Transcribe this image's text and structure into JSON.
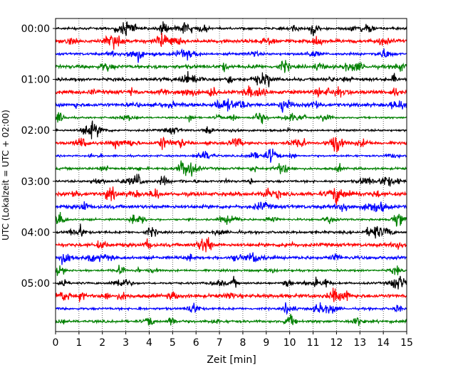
{
  "chart_data": {
    "type": "line",
    "title": "",
    "xlabel": "Zeit  [min]",
    "ylabel": "UTC (Lokalzeit = UTC + 02:00)",
    "xlim": [
      0,
      15
    ],
    "x_ticks": [
      0,
      1,
      2,
      3,
      4,
      5,
      6,
      7,
      8,
      9,
      10,
      11,
      12,
      13,
      14,
      15
    ],
    "x_grid": "dotted vertical lines at each minute",
    "y_ticks": [
      {
        "label": "00:00",
        "trace": 0
      },
      {
        "label": "01:00",
        "trace": 4
      },
      {
        "label": "02:00",
        "trace": 8
      },
      {
        "label": "03:00",
        "trace": 12
      },
      {
        "label": "04:00",
        "trace": 16
      },
      {
        "label": "05:00",
        "trace": 20
      }
    ],
    "trace_count": 24,
    "trace_interval_minutes": 15,
    "color_cycle": [
      "#000000",
      "#ff0000",
      "#0000ff",
      "#008000"
    ],
    "description": "Helicorder (seismogram drum) plot: 24 stacked 15-minute noise traces cycling black, red, blue, green"
  }
}
